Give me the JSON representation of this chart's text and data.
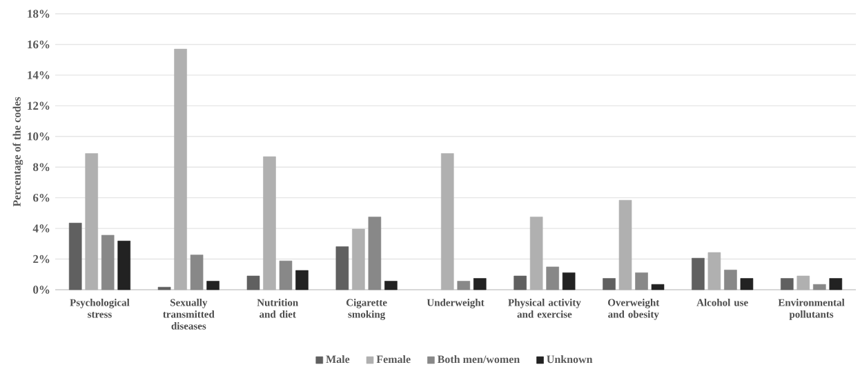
{
  "chart_data": {
    "type": "bar",
    "ylabel": "Percentage of the codes",
    "categories": [
      "Psychological stress",
      "Sexually transmitted diseases",
      "Nutrition and diet",
      "Cigarette smoking",
      "Underweight",
      "Physical activity and exercise",
      "Overweight and obesity",
      "Alcohol use",
      "Environmental pollutants"
    ],
    "series": [
      {
        "name": "Male",
        "color": "#606060",
        "values": [
          4.35,
          0.17,
          0.9,
          2.81,
          null,
          0.9,
          0.74,
          2.06,
          0.74
        ]
      },
      {
        "name": "Female",
        "color": "#b0b0b0",
        "values": [
          8.89,
          15.7,
          8.68,
          3.96,
          8.89,
          4.75,
          5.84,
          2.43,
          0.9
        ]
      },
      {
        "name": "Both men/women",
        "color": "#888888",
        "values": [
          3.56,
          2.27,
          1.88,
          4.75,
          0.56,
          1.49,
          1.11,
          1.29,
          0.35
        ]
      },
      {
        "name": "Unknown",
        "color": "#222222",
        "values": [
          3.18,
          0.56,
          1.26,
          0.56,
          0.74,
          1.11,
          0.35,
          0.74,
          0.74
        ]
      }
    ],
    "ylim": [
      0,
      18
    ],
    "yticks": [
      {
        "value": 0,
        "label": "0%"
      },
      {
        "value": 2,
        "label": "2%"
      },
      {
        "value": 4,
        "label": "4%"
      },
      {
        "value": 6,
        "label": "6%"
      },
      {
        "value": 8,
        "label": "8%"
      },
      {
        "value": 10,
        "label": "10%"
      },
      {
        "value": 12,
        "label": "12%"
      },
      {
        "value": 14,
        "label": "14%"
      },
      {
        "value": 16,
        "label": "16%"
      },
      {
        "value": 18,
        "label": "18%"
      }
    ],
    "grid": "y",
    "legend": "bottom"
  }
}
